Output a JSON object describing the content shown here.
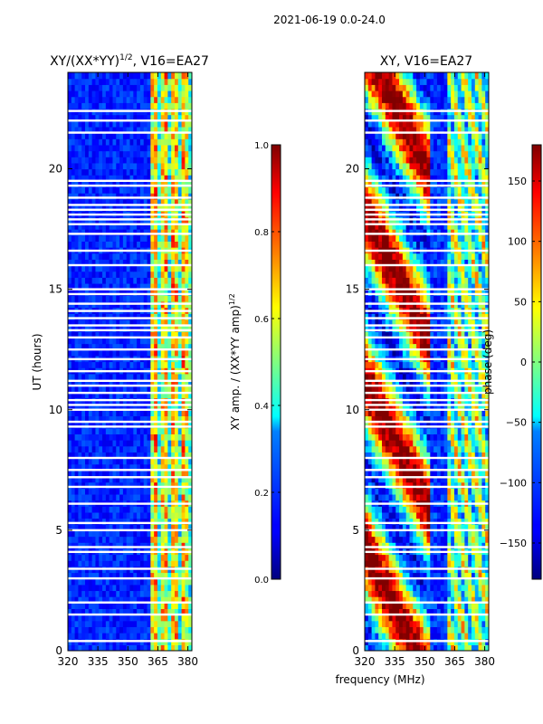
{
  "chart_data": {
    "figure_title": "2021-06-19 0.0-24.0",
    "shared_xlabel": "frequency (MHz)",
    "panels": [
      {
        "id": "amp",
        "type": "heatmap",
        "title": "XY/(XX*YY)",
        "title_sup": "1/2",
        "title_suffix": ", V16=EA27",
        "ylabel": "UT (hours)",
        "xlim": [
          320,
          382
        ],
        "ylim": [
          0,
          24
        ],
        "xticks": [
          320,
          335,
          350,
          365,
          380
        ],
        "yticks": [
          0,
          5,
          10,
          15,
          20
        ],
        "colorbar": {
          "label": "XY amp. / (XX*YY amp)",
          "label_sup": "1/2",
          "range": [
            0.0,
            1.0
          ],
          "ticks": [
            "0.0",
            "0.2",
            "0.4",
            "0.6",
            "0.8",
            "1.0"
          ],
          "tick_values": [
            0.0,
            0.2,
            0.4,
            0.6,
            0.8,
            1.0
          ]
        }
      },
      {
        "id": "phase",
        "type": "heatmap",
        "title": "XY, V16=EA27",
        "ylabel": "",
        "xlim": [
          320,
          382
        ],
        "ylim": [
          0,
          24
        ],
        "xticks": [
          320,
          335,
          350,
          365,
          380
        ],
        "yticks": [
          0,
          5,
          10,
          15,
          20
        ],
        "colorbar": {
          "label": "phase (deg)",
          "range": [
            -180,
            180
          ],
          "ticks": [
            "−150",
            "−100",
            "−50",
            "0",
            "50",
            "100",
            "150"
          ],
          "tick_values": [
            -150,
            -100,
            -50,
            0,
            50,
            100,
            150
          ]
        }
      }
    ],
    "flagged_ut_hours": [
      0.4,
      1.5,
      2.0,
      3.0,
      3.4,
      4.1,
      4.3,
      5.0,
      5.3,
      6.1,
      6.8,
      7.2,
      7.5,
      8.0,
      9.3,
      9.5,
      10.0,
      10.2,
      10.4,
      10.7,
      11.0,
      11.2,
      11.6,
      12.1,
      12.5,
      13.0,
      13.3,
      13.5,
      13.8,
      14.1,
      14.4,
      14.8,
      15.0,
      16.0,
      16.6,
      17.3,
      17.7,
      17.9,
      18.1,
      18.3,
      18.5,
      18.8,
      19.3,
      19.5,
      21.5,
      22.0,
      22.4
    ],
    "amp_bright_band_mhz": [
      362,
      382
    ]
  }
}
